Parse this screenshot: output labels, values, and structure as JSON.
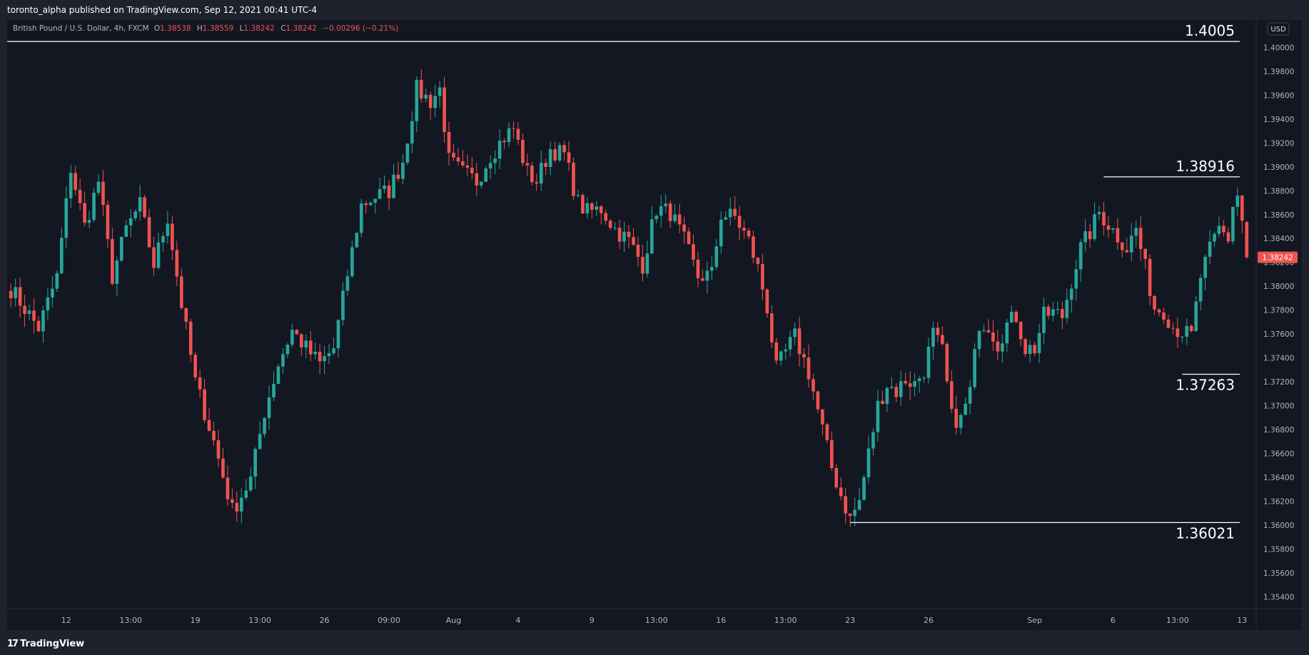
{
  "header": {
    "published": "toronto_alpha published on TradingView.com, Sep 12, 2021 00:41 UTC-4"
  },
  "footer": {
    "brand": "TradingView",
    "brand_mark": "17"
  },
  "colors": {
    "up": "#26a69a",
    "down": "#ef5350",
    "background": "#131722",
    "frame": "#1e222d",
    "text": "#b2b5be",
    "line": "#ffffff"
  },
  "chart_data": {
    "type": "candlestick",
    "symbol_desc": "British Pound / U.S. Dollar, 4h, FXCM",
    "ohlc": {
      "o_label": "O",
      "o": "1.38538",
      "h_label": "H",
      "h": "1.38559",
      "l_label": "L",
      "l": "1.38242",
      "c_label": "C",
      "c": "1.38242",
      "change": "−0.00296 (−0.21%)"
    },
    "currency": "USD",
    "last_price": "1.38242",
    "ylim": [
      1.353,
      1.4023
    ],
    "y_ticks": [
      "1.35400",
      "1.35600",
      "1.35800",
      "1.36000",
      "1.36200",
      "1.36400",
      "1.36600",
      "1.36800",
      "1.37000",
      "1.37200",
      "1.37400",
      "1.37600",
      "1.37800",
      "1.38000",
      "1.38200",
      "1.38400",
      "1.38600",
      "1.38800",
      "1.39000",
      "1.39200",
      "1.39400",
      "1.39600",
      "1.39800",
      "1.40000"
    ],
    "x_ticks": [
      {
        "label": "12",
        "index": 12
      },
      {
        "label": "13:00",
        "index": 26
      },
      {
        "label": "19",
        "index": 40
      },
      {
        "label": "13:00",
        "index": 54
      },
      {
        "label": "26",
        "index": 68
      },
      {
        "label": "09:00",
        "index": 82
      },
      {
        "label": "Aug",
        "index": 96
      },
      {
        "label": "4",
        "index": 110
      },
      {
        "label": "9",
        "index": 126
      },
      {
        "label": "13:00",
        "index": 140
      },
      {
        "label": "16",
        "index": 154
      },
      {
        "label": "13:00",
        "index": 168
      },
      {
        "label": "23",
        "index": 182
      },
      {
        "label": "26",
        "index": 199
      },
      {
        "label": "Sep",
        "index": 222
      },
      {
        "label": "6",
        "index": 239
      },
      {
        "label": "13:00",
        "index": 253
      },
      {
        "label": "13",
        "index": 267
      }
    ],
    "anchors": [
      [
        0,
        1.3798
      ],
      [
        6,
        1.3765
      ],
      [
        10,
        1.3808
      ],
      [
        13,
        1.3899
      ],
      [
        16,
        1.385
      ],
      [
        19,
        1.3888
      ],
      [
        22,
        1.3808
      ],
      [
        25,
        1.3848
      ],
      [
        28,
        1.3868
      ],
      [
        31,
        1.3818
      ],
      [
        34,
        1.3858
      ],
      [
        37,
        1.3785
      ],
      [
        40,
        1.372
      ],
      [
        44,
        1.367
      ],
      [
        48,
        1.3612
      ],
      [
        52,
        1.3638
      ],
      [
        55,
        1.3695
      ],
      [
        58,
        1.3735
      ],
      [
        61,
        1.3763
      ],
      [
        64,
        1.3748
      ],
      [
        67,
        1.3735
      ],
      [
        70,
        1.3748
      ],
      [
        73,
        1.381
      ],
      [
        76,
        1.3868
      ],
      [
        79,
        1.3875
      ],
      [
        82,
        1.388
      ],
      [
        85,
        1.3905
      ],
      [
        88,
        1.3965
      ],
      [
        91,
        1.3955
      ],
      [
        93,
        1.3965
      ],
      [
        95,
        1.3905
      ],
      [
        98,
        1.3895
      ],
      [
        101,
        1.3888
      ],
      [
        104,
        1.391
      ],
      [
        107,
        1.3925
      ],
      [
        109,
        1.3932
      ],
      [
        112,
        1.3895
      ],
      [
        114,
        1.3888
      ],
      [
        117,
        1.3915
      ],
      [
        120,
        1.391
      ],
      [
        123,
        1.387
      ],
      [
        125,
        1.3862
      ],
      [
        128,
        1.3865
      ],
      [
        131,
        1.3848
      ],
      [
        134,
        1.3838
      ],
      [
        137,
        1.3818
      ],
      [
        140,
        1.3865
      ],
      [
        143,
        1.3862
      ],
      [
        146,
        1.3838
      ],
      [
        149,
        1.3808
      ],
      [
        152,
        1.381
      ],
      [
        154,
        1.386
      ],
      [
        157,
        1.3858
      ],
      [
        160,
        1.3838
      ],
      [
        162,
        1.3815
      ],
      [
        164,
        1.3782
      ],
      [
        166,
        1.373
      ],
      [
        168,
        1.3745
      ],
      [
        170,
        1.3758
      ],
      [
        173,
        1.3728
      ],
      [
        176,
        1.368
      ],
      [
        178,
        1.3648
      ],
      [
        180,
        1.3625
      ],
      [
        182,
        1.3605
      ],
      [
        184,
        1.362
      ],
      [
        186,
        1.366
      ],
      [
        188,
        1.37
      ],
      [
        190,
        1.3718
      ],
      [
        192,
        1.3712
      ],
      [
        194,
        1.3722
      ],
      [
        196,
        1.3718
      ],
      [
        198,
        1.373
      ],
      [
        200,
        1.376
      ],
      [
        202,
        1.3745
      ],
      [
        204,
        1.369
      ],
      [
        206,
        1.3688
      ],
      [
        208,
        1.3712
      ],
      [
        210,
        1.377
      ],
      [
        212,
        1.3768
      ],
      [
        214,
        1.3752
      ],
      [
        216,
        1.3768
      ],
      [
        218,
        1.3775
      ],
      [
        220,
        1.3748
      ],
      [
        222,
        1.3748
      ],
      [
        224,
        1.3775
      ],
      [
        226,
        1.3778
      ],
      [
        228,
        1.3775
      ],
      [
        230,
        1.3805
      ],
      [
        232,
        1.3832
      ],
      [
        234,
        1.3845
      ],
      [
        236,
        1.3862
      ],
      [
        238,
        1.3852
      ],
      [
        240,
        1.3842
      ],
      [
        242,
        1.3832
      ],
      [
        244,
        1.3848
      ],
      [
        246,
        1.3815
      ],
      [
        248,
        1.3782
      ],
      [
        250,
        1.378
      ],
      [
        252,
        1.3766
      ],
      [
        254,
        1.3762
      ],
      [
        256,
        1.3758
      ],
      [
        258,
        1.3808
      ],
      [
        260,
        1.383
      ],
      [
        262,
        1.3848
      ],
      [
        264,
        1.384
      ],
      [
        265,
        1.3868
      ],
      [
        266,
        1.3876
      ],
      [
        267,
        1.3855
      ],
      [
        268,
        1.3824
      ]
    ],
    "levels": [
      {
        "price": 1.4005,
        "label": "1.4005",
        "from_index": 0,
        "label_pos": "above"
      },
      {
        "price": 1.38916,
        "label": "1.38916",
        "from_index": 237,
        "label_pos": "above"
      },
      {
        "price": 1.37263,
        "label": "1.37263",
        "from_index": 254,
        "label_pos": "below"
      },
      {
        "price": 1.36021,
        "label": "1.36021",
        "from_index": 182,
        "label_pos": "below"
      }
    ]
  }
}
